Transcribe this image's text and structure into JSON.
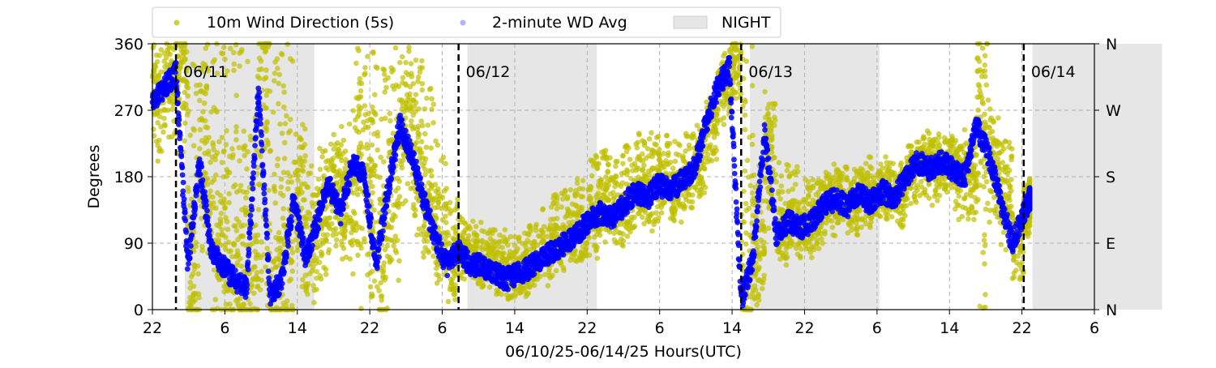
{
  "chart_data": {
    "type": "scatter",
    "title": "",
    "xlabel": "06/10/25-06/14/25  Hours(UTC)",
    "ylabel": "Degrees",
    "x_unit": "hours UTC",
    "xlim": [
      "06/10/25 22:00",
      "06/14/25 06:00"
    ],
    "ylim": [
      0,
      360
    ],
    "x_ticks": [
      "22",
      "6",
      "14",
      "22",
      "6",
      "14",
      "22",
      "6",
      "14",
      "22",
      "6",
      "14",
      "22",
      "6"
    ],
    "y_ticks": [
      "0",
      "90",
      "180",
      "270",
      "360"
    ],
    "y2_ticks": [
      "N",
      "E",
      "S",
      "W",
      "N"
    ],
    "grid": true,
    "legend_position": "top",
    "legend": [
      {
        "label": "10m Wind Direction (5s)",
        "color": "#bfbf00",
        "kind": "marker"
      },
      {
        "label": "2-minute WD Avg",
        "color": "#0000ff",
        "kind": "marker"
      },
      {
        "label": "NIGHT",
        "color": "#e6e6e6",
        "kind": "patch"
      }
    ],
    "night_periods": [
      {
        "start": "06/11/25 00:45",
        "end": "06/11/25 11:45"
      },
      {
        "start": "06/12/25 00:45",
        "end": "06/12/25 11:45"
      },
      {
        "start": "06/13/25 00:45",
        "end": "06/13/25 11:45"
      },
      {
        "start": "06/14/25 00:45",
        "end": "06/14/25 11:45"
      }
    ],
    "day_markers": [
      {
        "x": "06/11/25 00:00",
        "label": "06/11"
      },
      {
        "x": "06/12/25 00:00",
        "label": "06/12"
      },
      {
        "x": "06/13/25 00:00",
        "label": "06/13"
      },
      {
        "x": "06/14/25 00:00",
        "label": "06/14"
      }
    ],
    "series": [
      {
        "name": "2-minute WD Avg",
        "color": "#0000ff",
        "x": [
          "06/10/25 22:00",
          "06/10/25 23:00",
          "06/11/25 00:00",
          "06/11/25 01:00",
          "06/11/25 02:00",
          "06/11/25 03:00",
          "06/11/25 04:00",
          "06/11/25 05:00",
          "06/11/25 06:00",
          "06/11/25 07:00",
          "06/11/25 08:00",
          "06/11/25 09:00",
          "06/11/25 10:00",
          "06/11/25 11:00",
          "06/11/25 12:00",
          "06/11/25 13:00",
          "06/11/25 14:00",
          "06/11/25 15:00",
          "06/11/25 16:00",
          "06/11/25 17:00",
          "06/11/25 18:00",
          "06/11/25 19:00",
          "06/11/25 20:00",
          "06/11/25 21:00",
          "06/11/25 22:00",
          "06/11/25 23:00",
          "06/12/25 00:00",
          "06/12/25 01:00",
          "06/12/25 02:00",
          "06/12/25 03:00",
          "06/12/25 04:00",
          "06/12/25 05:00",
          "06/12/25 06:00",
          "06/12/25 07:00",
          "06/12/25 08:00",
          "06/12/25 09:00",
          "06/12/25 10:00",
          "06/12/25 11:00",
          "06/12/25 12:00",
          "06/12/25 13:00",
          "06/12/25 14:00",
          "06/12/25 15:00",
          "06/12/25 16:00",
          "06/12/25 17:00",
          "06/12/25 18:00",
          "06/12/25 19:00",
          "06/12/25 20:00",
          "06/12/25 21:00",
          "06/12/25 22:00",
          "06/12/25 23:00",
          "06/13/25 00:00",
          "06/13/25 01:00",
          "06/13/25 02:00",
          "06/13/25 03:00",
          "06/13/25 04:00",
          "06/13/25 05:00",
          "06/13/25 06:00",
          "06/13/25 07:00",
          "06/13/25 08:00",
          "06/13/25 09:00",
          "06/13/25 10:00",
          "06/13/25 11:00",
          "06/13/25 12:00",
          "06/13/25 13:00",
          "06/13/25 14:00",
          "06/13/25 15:00",
          "06/13/25 16:00",
          "06/13/25 17:00",
          "06/13/25 18:00",
          "06/13/25 19:00",
          "06/13/25 20:00",
          "06/13/25 21:00",
          "06/13/25 22:00",
          "06/13/25 23:00",
          "06/14/25 00:00",
          "06/14/25 00:30"
        ],
        "y": [
          280,
          300,
          320,
          60,
          200,
          80,
          60,
          40,
          30,
          300,
          20,
          40,
          150,
          70,
          120,
          170,
          130,
          200,
          180,
          60,
          160,
          250,
          210,
          150,
          100,
          60,
          80,
          60,
          60,
          50,
          40,
          50,
          55,
          70,
          80,
          90,
          100,
          120,
          130,
          125,
          140,
          160,
          150,
          170,
          160,
          175,
          190,
          250,
          300,
          330,
          10,
          70,
          240,
          100,
          120,
          110,
          120,
          140,
          150,
          140,
          155,
          145,
          160,
          150,
          180,
          200,
          190,
          200,
          190,
          180,
          250,
          210,
          150,
          90,
          130,
          150
        ]
      },
      {
        "name": "10m Wind Direction (5s)",
        "color": "#bfbf00",
        "x": [
          "06/10/25 22:00",
          "06/10/25 23:00",
          "06/11/25 00:00",
          "06/11/25 01:00",
          "06/11/25 02:00",
          "06/11/25 03:00",
          "06/11/25 04:00",
          "06/11/25 05:00",
          "06/11/25 06:00",
          "06/11/25 07:00",
          "06/11/25 08:00",
          "06/11/25 09:00",
          "06/11/25 10:00",
          "06/11/25 11:00",
          "06/11/25 12:00",
          "06/11/25 13:00",
          "06/11/25 14:00",
          "06/11/25 15:00",
          "06/11/25 16:00",
          "06/11/25 17:00",
          "06/11/25 18:00",
          "06/11/25 19:00",
          "06/11/25 20:00",
          "06/11/25 21:00",
          "06/11/25 22:00",
          "06/11/25 23:00",
          "06/12/25 00:00",
          "06/12/25 01:00",
          "06/12/25 02:00",
          "06/12/25 03:00",
          "06/12/25 04:00",
          "06/12/25 05:00",
          "06/12/25 06:00",
          "06/12/25 07:00",
          "06/12/25 08:00",
          "06/12/25 09:00",
          "06/12/25 10:00",
          "06/12/25 11:00",
          "06/12/25 12:00",
          "06/12/25 13:00",
          "06/12/25 14:00",
          "06/12/25 15:00",
          "06/12/25 16:00",
          "06/12/25 17:00",
          "06/12/25 18:00",
          "06/12/25 19:00",
          "06/12/25 20:00",
          "06/12/25 21:00",
          "06/12/25 22:00",
          "06/12/25 23:00",
          "06/13/25 00:00",
          "06/13/25 01:00",
          "06/13/25 02:00",
          "06/13/25 03:00",
          "06/13/25 04:00",
          "06/13/25 05:00",
          "06/13/25 06:00",
          "06/13/25 07:00",
          "06/13/25 08:00",
          "06/13/25 09:00",
          "06/13/25 10:00",
          "06/13/25 11:00",
          "06/13/25 12:00",
          "06/13/25 13:00",
          "06/13/25 14:00",
          "06/13/25 15:00",
          "06/13/25 16:00",
          "06/13/25 17:00",
          "06/13/25 18:00",
          "06/13/25 19:00",
          "06/13/25 20:00",
          "06/13/25 21:00",
          "06/13/25 22:00",
          "06/13/25 23:00",
          "06/14/25 00:00",
          "06/14/25 00:30"
        ],
        "y": [
          285,
          310,
          330,
          55,
          210,
          85,
          65,
          45,
          35,
          310,
          25,
          45,
          160,
          75,
          125,
          175,
          135,
          210,
          185,
          65,
          165,
          255,
          215,
          155,
          105,
          65,
          85,
          65,
          65,
          55,
          45,
          55,
          60,
          75,
          85,
          95,
          105,
          125,
          135,
          130,
          145,
          165,
          155,
          175,
          165,
          180,
          195,
          255,
          305,
          335,
          15,
          75,
          245,
          105,
          125,
          115,
          125,
          145,
          155,
          145,
          160,
          150,
          165,
          155,
          185,
          205,
          195,
          205,
          195,
          185,
          255,
          215,
          155,
          95,
          135,
          155
        ],
        "y_min": [
          200,
          230,
          210,
          0,
          60,
          0,
          0,
          0,
          0,
          0,
          0,
          0,
          30,
          20,
          40,
          80,
          60,
          0,
          0,
          0,
          60,
          140,
          100,
          60,
          40,
          20,
          40,
          30,
          30,
          20,
          10,
          20,
          30,
          40,
          50,
          60,
          60,
          80,
          100,
          90,
          110,
          120,
          110,
          130,
          120,
          130,
          150,
          200,
          250,
          280,
          0,
          10,
          110,
          60,
          80,
          70,
          80,
          100,
          110,
          100,
          110,
          110,
          120,
          110,
          140,
          150,
          140,
          150,
          120,
          120,
          0,
          110,
          80,
          40,
          90,
          110
        ],
        "y_max": [
          360,
          360,
          360,
          360,
          360,
          360,
          360,
          360,
          360,
          360,
          360,
          360,
          260,
          200,
          230,
          240,
          260,
          360,
          360,
          360,
          360,
          360,
          340,
          300,
          230,
          150,
          130,
          120,
          110,
          110,
          100,
          110,
          120,
          140,
          160,
          170,
          190,
          210,
          220,
          210,
          230,
          240,
          240,
          240,
          230,
          240,
          250,
          290,
          340,
          360,
          360,
          200,
          280,
          200,
          200,
          180,
          190,
          200,
          200,
          190,
          210,
          200,
          210,
          200,
          230,
          240,
          240,
          240,
          230,
          230,
          360,
          260,
          230,
          140,
          170,
          180
        ]
      }
    ]
  }
}
